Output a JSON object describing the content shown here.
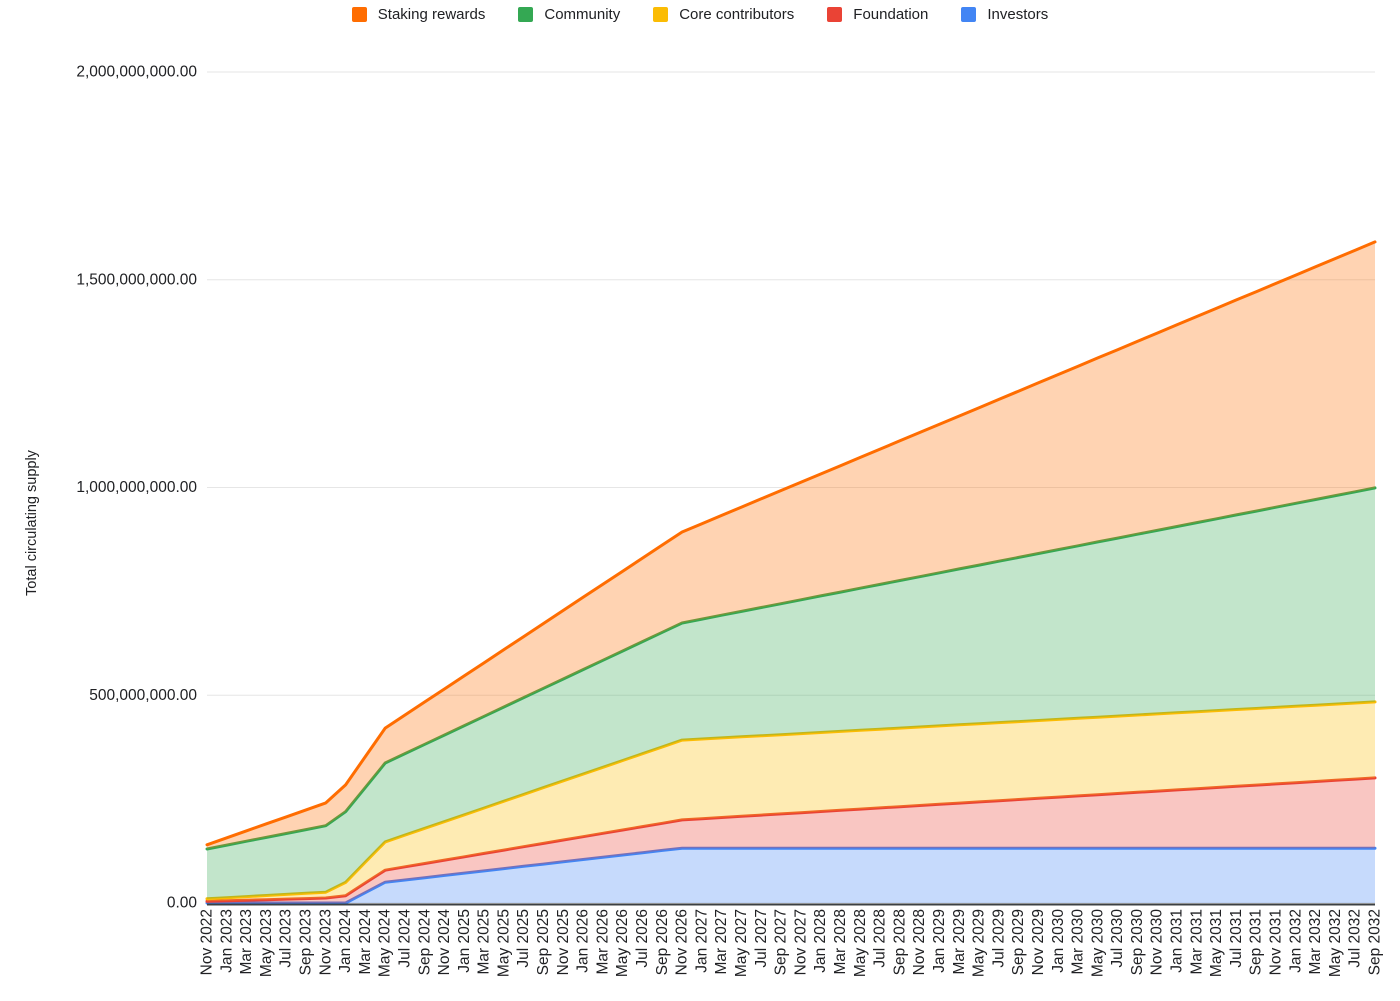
{
  "chart_data": {
    "type": "area",
    "stacked": true,
    "title": "",
    "xlabel": "",
    "ylabel": "Total circulating supply",
    "legend_position": "top",
    "area_opacity": 0.3,
    "colors": {
      "gridline": "#e6e6e6",
      "axis_line": "#3c4043",
      "text": "#202124",
      "background": "#ffffff"
    },
    "y_axis": {
      "min": 0,
      "max": 2000000000,
      "ticks": [
        {
          "value": 0,
          "label": "0.00"
        },
        {
          "value": 500000000,
          "label": "500,000,000.00"
        },
        {
          "value": 1000000000,
          "label": "1,000,000,000.00"
        },
        {
          "value": 1500000000,
          "label": "1,500,000,000.00"
        },
        {
          "value": 2000000000,
          "label": "2,000,000,000.00"
        }
      ]
    },
    "categories": [
      "Nov 2022",
      "Jan 2023",
      "Mar 2023",
      "May 2023",
      "Jul 2023",
      "Sep 2023",
      "Nov 2023",
      "Jan 2024",
      "Mar 2024",
      "May 2024",
      "Jul 2024",
      "Sep 2024",
      "Nov 2024",
      "Jan 2025",
      "Mar 2025",
      "May 2025",
      "Jul 2025",
      "Sep 2025",
      "Nov 2025",
      "Jan 2026",
      "Mar 2026",
      "May 2026",
      "Jul 2026",
      "Sep 2026",
      "Nov 2026",
      "Jan 2027",
      "Mar 2027",
      "May 2027",
      "Jul 2027",
      "Sep 2027",
      "Nov 2027",
      "Jan 2028",
      "Mar 2028",
      "May 2028",
      "Jul 2028",
      "Sep 2028",
      "Nov 2028",
      "Jan 2029",
      "Mar 2029",
      "May 2029",
      "Jul 2029",
      "Sep 2029",
      "Nov 2029",
      "Jan 2030",
      "Mar 2030",
      "May 2030",
      "Jul 2030",
      "Sep 2030",
      "Nov 2030",
      "Jan 2031",
      "Mar 2031",
      "May 2031",
      "Jul 2031",
      "Sep 2031",
      "Nov 2031",
      "Jan 2032",
      "Mar 2032",
      "May 2032",
      "Jul 2032",
      "Sep 2032"
    ],
    "series": [
      {
        "name": "Investors",
        "color": "#4285F4",
        "keyframes": [
          [
            0,
            0
          ],
          [
            7,
            0
          ],
          [
            9,
            50000000
          ],
          [
            24,
            132000000
          ],
          [
            59,
            132000000
          ]
        ]
      },
      {
        "name": "Foundation",
        "color": "#EA4335",
        "keyframes": [
          [
            0,
            4000000
          ],
          [
            6,
            12000000
          ],
          [
            9,
            29000000
          ],
          [
            24,
            68000000
          ],
          [
            59,
            169000000
          ]
        ]
      },
      {
        "name": "Core contributors",
        "color": "#FBBC04",
        "keyframes": [
          [
            0,
            6000000
          ],
          [
            6,
            14000000
          ],
          [
            9,
            68000000
          ],
          [
            24,
            192000000
          ],
          [
            59,
            183000000
          ]
        ]
      },
      {
        "name": "Community",
        "color": "#34A853",
        "keyframes": [
          [
            0,
            120000000
          ],
          [
            6,
            160000000
          ],
          [
            9,
            190000000
          ],
          [
            24,
            282000000
          ],
          [
            59,
            515000000
          ]
        ]
      },
      {
        "name": "Staking rewards",
        "color": "#FF6D01",
        "keyframes": [
          [
            0,
            10000000
          ],
          [
            6,
            55000000
          ],
          [
            9,
            84000000
          ],
          [
            24,
            219000000
          ],
          [
            59,
            592000000
          ]
        ]
      }
    ],
    "legend": [
      {
        "label": "Staking rewards",
        "color": "#FF6D01"
      },
      {
        "label": "Community",
        "color": "#34A853"
      },
      {
        "label": "Core contributors",
        "color": "#FBBC04"
      },
      {
        "label": "Foundation",
        "color": "#EA4335"
      },
      {
        "label": "Investors",
        "color": "#4285F4"
      }
    ]
  }
}
